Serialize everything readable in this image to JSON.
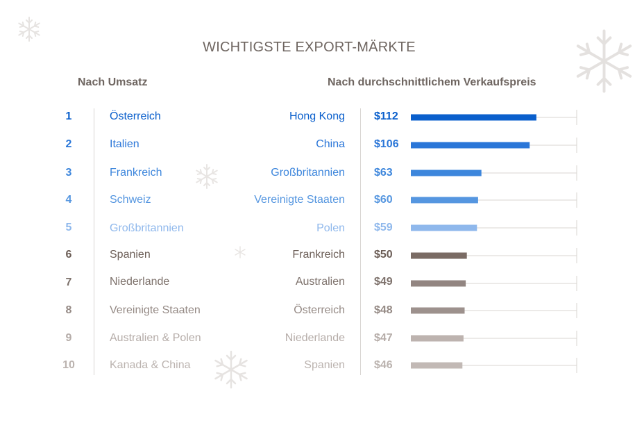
{
  "title": "WICHTIGSTE EXPORT-MÄRKTE",
  "left_heading": "Nach Umsatz",
  "right_heading": "Nach durchschnittlichem Verkaufspreis",
  "colors": {
    "rank_colors": [
      "#0a5fcc",
      "#2a76d8",
      "#3d86dc",
      "#5596e0",
      "#8fb8ec",
      "#6b5d56",
      "#7d716b",
      "#958a85",
      "#b5aca8",
      "#bbb3af"
    ],
    "bar_colors": [
      "#0a5fcc",
      "#2a76d8",
      "#3d86dc",
      "#5596e0",
      "#8fb8ec",
      "#7a6b64",
      "#928581",
      "#9d918d",
      "#bdb3af",
      "#c2b9b5"
    ],
    "heading": "#6e6560",
    "grid": "#d9d5d2"
  },
  "icons": [
    "snowflake-icon"
  ],
  "by_revenue": [
    {
      "rank": "1",
      "country": "Österreich"
    },
    {
      "rank": "2",
      "country": "Italien"
    },
    {
      "rank": "3",
      "country": "Frankreich"
    },
    {
      "rank": "4",
      "country": "Schweiz"
    },
    {
      "rank": "5",
      "country": "Großbritannien"
    },
    {
      "rank": "6",
      "country": "Spanien"
    },
    {
      "rank": "7",
      "country": "Niederlande"
    },
    {
      "rank": "8",
      "country": "Vereinigte Staaten"
    },
    {
      "rank": "9",
      "country": "Australien & Polen"
    },
    {
      "rank": "10",
      "country": "Kanada & China"
    }
  ],
  "chart_data": {
    "type": "bar",
    "orientation": "horizontal",
    "title": "Nach durchschnittlichem Verkaufspreis",
    "categories": [
      "Hong Kong",
      "China",
      "Großbritannien",
      "Vereinigte Staaten",
      "Polen",
      "Frankreich",
      "Australien",
      "Österreich",
      "Niederlande",
      "Spanien"
    ],
    "values": [
      112,
      106,
      63,
      60,
      59,
      50,
      49,
      48,
      47,
      46
    ],
    "value_labels": [
      "$112",
      "$106",
      "$63",
      "$60",
      "$59",
      "$50",
      "$49",
      "$48",
      "$47",
      "$46"
    ],
    "xlim": [
      0,
      148
    ],
    "grid": true,
    "legend": "none"
  }
}
